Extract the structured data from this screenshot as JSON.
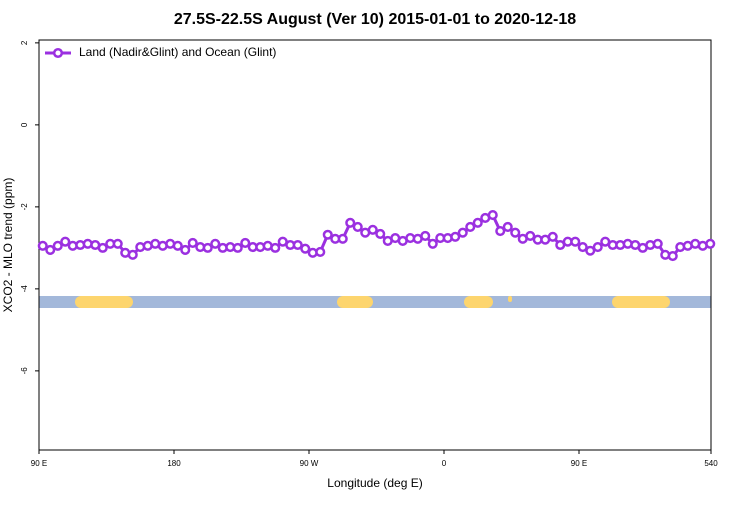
{
  "chart_data": {
    "type": "line",
    "title": "27.5S-22.5S August (Ver 10)   2015-01-01 to 2020-12-18",
    "x_label": "Longitude (deg E)",
    "y_label": "XCO2 - MLO trend (ppm)",
    "x": [
      92.5,
      97.5,
      102.5,
      107.5,
      112.5,
      117.5,
      122.5,
      127.5,
      132.5,
      137.5,
      142.5,
      147.5,
      152.5,
      157.5,
      162.5,
      167.5,
      172.5,
      177.5,
      182.5,
      187.5,
      192.5,
      197.5,
      202.5,
      207.5,
      212.5,
      217.5,
      222.5,
      227.5,
      232.5,
      237.5,
      242.5,
      247.5,
      252.5,
      257.5,
      262.5,
      267.5,
      272.5,
      277.5,
      282.5,
      287.5,
      292.5,
      297.5,
      302.5,
      307.5,
      312.5,
      317.5,
      322.5,
      327.5,
      332.5,
      337.5,
      342.5,
      347.5,
      352.5,
      357.5,
      362.5,
      367.5,
      372.5,
      377.5,
      382.5,
      387.5,
      392.5,
      397.5,
      402.5,
      407.5,
      412.5,
      417.5,
      422.5,
      427.5,
      432.5,
      437.5,
      442.5,
      447.5,
      452.5,
      457.5,
      462.5,
      467.5,
      472.5,
      477.5,
      482.5,
      487.5,
      492.5,
      497.5,
      502.5,
      507.5,
      512.5,
      517.5,
      522.5,
      527.5,
      532.5,
      537.5
    ],
    "series": [
      {
        "name": "Land (Nadir&Glint) and Ocean (Glint)",
        "color": "#9b30e0",
        "values": [
          -2.95,
          -3.05,
          -2.95,
          -2.85,
          -2.95,
          -2.93,
          -2.9,
          -2.93,
          -3.0,
          -2.9,
          -2.9,
          -3.12,
          -3.17,
          -2.98,
          -2.95,
          -2.9,
          -2.95,
          -2.9,
          -2.95,
          -3.05,
          -2.88,
          -2.98,
          -3.0,
          -2.9,
          -3.0,
          -2.98,
          -3.0,
          -2.88,
          -2.98,
          -2.98,
          -2.95,
          -3.0,
          -2.85,
          -2.93,
          -2.93,
          -3.02,
          -3.12,
          -3.1,
          -2.68,
          -2.78,
          -2.78,
          -2.39,
          -2.49,
          -2.63,
          -2.56,
          -2.66,
          -2.83,
          -2.76,
          -2.83,
          -2.76,
          -2.78,
          -2.71,
          -2.9,
          -2.76,
          -2.76,
          -2.73,
          -2.63,
          -2.49,
          -2.39,
          -2.27,
          -2.2,
          -2.59,
          -2.49,
          -2.63,
          -2.78,
          -2.71,
          -2.8,
          -2.8,
          -2.73,
          -2.93,
          -2.85,
          -2.85,
          -2.98,
          -3.07,
          -2.98,
          -2.85,
          -2.93,
          -2.93,
          -2.9,
          -2.93,
          -3.0,
          -2.93,
          -2.9,
          -3.17,
          -3.2,
          -2.98,
          -2.95,
          -2.9,
          -2.95,
          -2.9
        ]
      }
    ],
    "xlim": [
      90,
      538
    ],
    "xticks": [
      {
        "value": 90,
        "label": "90 E"
      },
      180,
      {
        "value": 270,
        "label": "90 W"
      },
      {
        "value": 360,
        "label": "0"
      },
      {
        "value": 450,
        "label": "90 E"
      },
      540
    ],
    "ylim": [
      -7.93,
      2.07
    ],
    "yticks": [
      2,
      0,
      -2,
      -4,
      -6
    ],
    "legend": "top-left"
  }
}
